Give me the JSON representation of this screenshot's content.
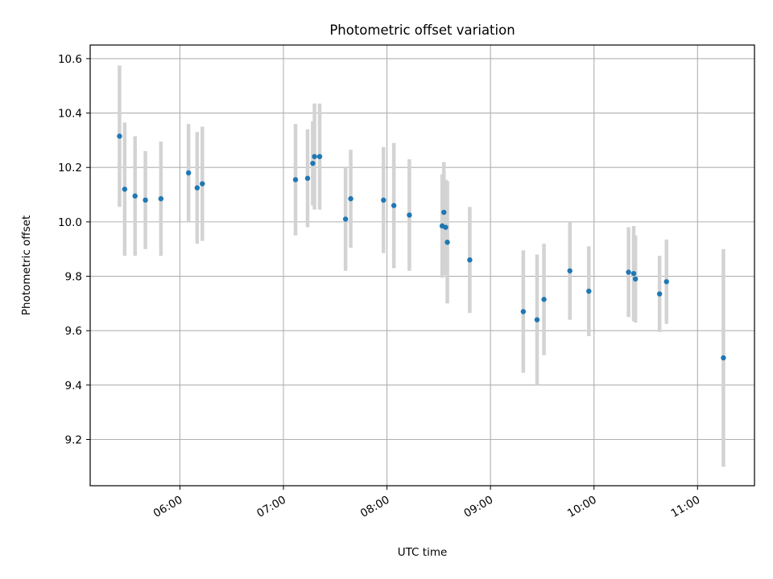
{
  "chart_data": {
    "type": "scatter",
    "title": "Photometric offset variation",
    "xlabel": "UTC time",
    "ylabel": "Photometric offset",
    "x_axis_kind": "time",
    "xlim": [
      "05:08",
      "11:33"
    ],
    "ylim": [
      9.03,
      10.65
    ],
    "x_ticks": [
      "06:00",
      "07:00",
      "08:00",
      "09:00",
      "10:00",
      "11:00"
    ],
    "y_ticks": [
      9.2,
      9.4,
      9.6,
      9.8,
      10.0,
      10.2,
      10.4,
      10.6
    ],
    "y_tick_labels": [
      "9.2",
      "9.4",
      "9.6",
      "9.8",
      "10.0",
      "10.2",
      "10.4",
      "10.6"
    ],
    "grid": true,
    "colors": {
      "point": "#1f77b4",
      "errorbar": "#d3d3d3",
      "grid": "#b0b0b0"
    },
    "points": [
      {
        "time": "05:25",
        "y": 10.315,
        "err": 0.26
      },
      {
        "time": "05:28",
        "y": 10.12,
        "err": 0.245
      },
      {
        "time": "05:34",
        "y": 10.095,
        "err": 0.22
      },
      {
        "time": "05:40",
        "y": 10.08,
        "err": 0.18
      },
      {
        "time": "05:49",
        "y": 10.085,
        "err": 0.21
      },
      {
        "time": "06:05",
        "y": 10.18,
        "err": 0.18
      },
      {
        "time": "06:10",
        "y": 10.125,
        "err": 0.205
      },
      {
        "time": "06:13",
        "y": 10.14,
        "err": 0.21
      },
      {
        "time": "07:07",
        "y": 10.155,
        "err": 0.205
      },
      {
        "time": "07:14",
        "y": 10.16,
        "err": 0.18
      },
      {
        "time": "07:17",
        "y": 10.215,
        "err": 0.155
      },
      {
        "time": "07:18",
        "y": 10.24,
        "err": 0.195
      },
      {
        "time": "07:21",
        "y": 10.24,
        "err": 0.195
      },
      {
        "time": "07:36",
        "y": 10.01,
        "err": 0.19
      },
      {
        "time": "07:39",
        "y": 10.085,
        "err": 0.18
      },
      {
        "time": "07:58",
        "y": 10.08,
        "err": 0.195
      },
      {
        "time": "08:04",
        "y": 10.06,
        "err": 0.23
      },
      {
        "time": "08:13",
        "y": 10.025,
        "err": 0.205
      },
      {
        "time": "08:32",
        "y": 9.985,
        "err": 0.19
      },
      {
        "time": "08:33",
        "y": 10.035,
        "err": 0.185
      },
      {
        "time": "08:34",
        "y": 9.98,
        "err": 0.175
      },
      {
        "time": "08:35",
        "y": 9.925,
        "err": 0.225
      },
      {
        "time": "08:48",
        "y": 9.86,
        "err": 0.195
      },
      {
        "time": "09:19",
        "y": 9.67,
        "err": 0.225
      },
      {
        "time": "09:27",
        "y": 9.64,
        "err": 0.24
      },
      {
        "time": "09:31",
        "y": 9.715,
        "err": 0.205
      },
      {
        "time": "09:46",
        "y": 9.82,
        "err": 0.18
      },
      {
        "time": "09:57",
        "y": 9.745,
        "err": 0.165
      },
      {
        "time": "10:20",
        "y": 9.815,
        "err": 0.165
      },
      {
        "time": "10:23",
        "y": 9.81,
        "err": 0.175
      },
      {
        "time": "10:24",
        "y": 9.79,
        "err": 0.16
      },
      {
        "time": "10:38",
        "y": 9.735,
        "err": 0.14
      },
      {
        "time": "10:42",
        "y": 9.78,
        "err": 0.155
      },
      {
        "time": "11:15",
        "y": 9.5,
        "err": 0.4
      }
    ]
  }
}
